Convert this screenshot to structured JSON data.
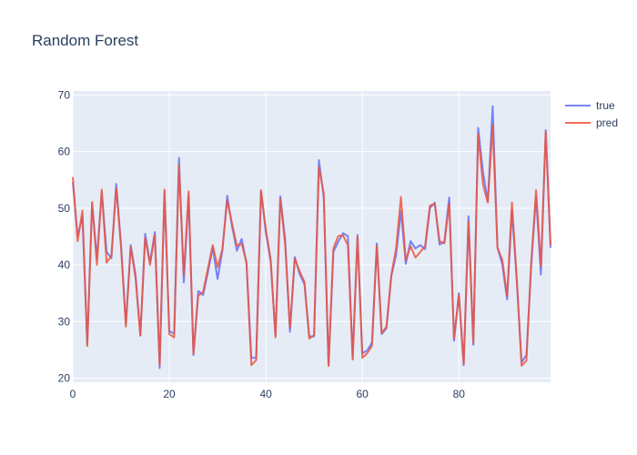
{
  "chart_data": {
    "type": "line",
    "title": "Random Forest",
    "xlabel": "",
    "ylabel": "",
    "xlim": [
      0,
      99
    ],
    "ylim": [
      19.3,
      70.7
    ],
    "x_ticks": [
      0,
      20,
      40,
      60,
      80
    ],
    "y_ticks": [
      20,
      30,
      40,
      50,
      60,
      70
    ],
    "grid": true,
    "legend_position": "top-right",
    "x": [
      0,
      1,
      2,
      3,
      4,
      5,
      6,
      7,
      8,
      9,
      10,
      11,
      12,
      13,
      14,
      15,
      16,
      17,
      18,
      19,
      20,
      21,
      22,
      23,
      24,
      25,
      26,
      27,
      28,
      29,
      30,
      31,
      32,
      33,
      34,
      35,
      36,
      37,
      38,
      39,
      40,
      41,
      42,
      43,
      44,
      45,
      46,
      47,
      48,
      49,
      50,
      51,
      52,
      53,
      54,
      55,
      56,
      57,
      58,
      59,
      60,
      61,
      62,
      63,
      64,
      65,
      66,
      67,
      68,
      69,
      70,
      71,
      72,
      73,
      74,
      75,
      76,
      77,
      78,
      79,
      80,
      81,
      82,
      83,
      84,
      85,
      86,
      87,
      88,
      89,
      90,
      91,
      92,
      93,
      94,
      95,
      96,
      97,
      98,
      99
    ],
    "series": [
      {
        "name": "true",
        "color": "#636efa",
        "values": [
          54.6,
          45.1,
          48.6,
          26.0,
          50.9,
          41.2,
          52.9,
          42.3,
          41.2,
          54.3,
          43.5,
          29.6,
          43.5,
          38.3,
          27.6,
          45.5,
          40.4,
          45.8,
          21.8,
          52.9,
          28.3,
          27.9,
          58.9,
          36.9,
          52.1,
          24.1,
          35.4,
          34.7,
          38.7,
          43.0,
          37.5,
          42.5,
          52.2,
          46.8,
          42.5,
          44.6,
          40.2,
          23.6,
          23.6,
          53.1,
          45.7,
          40.6,
          27.5,
          52.1,
          44.6,
          28.2,
          41.4,
          38.4,
          36.6,
          27.4,
          27.4,
          58.5,
          52.0,
          22.3,
          42.3,
          44.1,
          45.6,
          45.1,
          23.4,
          45.3,
          24.4,
          24.9,
          26.3,
          43.8,
          27.8,
          28.8,
          38.0,
          41.8,
          49.5,
          40.2,
          44.2,
          42.9,
          43.5,
          42.8,
          50.0,
          51.0,
          43.6,
          44.1,
          51.9,
          26.6,
          35.0,
          22.3,
          48.6,
          25.9,
          64.2,
          56.4,
          51.2,
          68.0,
          43.1,
          40.1,
          33.9,
          49.6,
          37.2,
          22.8,
          24.1,
          39.9,
          52.2,
          38.3,
          63.8,
          43.0
        ]
      },
      {
        "name": "pred",
        "color": "#ef553b",
        "values": [
          55.5,
          44.2,
          49.6,
          25.7,
          51.1,
          40.0,
          53.3,
          40.4,
          41.6,
          53.6,
          43.1,
          29.1,
          43.2,
          37.7,
          27.5,
          44.8,
          40.0,
          45.3,
          22.3,
          53.3,
          27.8,
          27.2,
          57.6,
          38.2,
          53.0,
          24.3,
          34.6,
          35.2,
          39.4,
          43.5,
          39.6,
          42.8,
          51.4,
          47.3,
          43.4,
          43.7,
          40.5,
          22.3,
          23.2,
          53.2,
          46.3,
          41.1,
          27.2,
          51.7,
          43.6,
          28.9,
          41.1,
          38.9,
          37.0,
          27.0,
          27.6,
          57.3,
          52.6,
          22.2,
          42.9,
          45.1,
          45.2,
          43.5,
          23.3,
          45.0,
          23.6,
          24.4,
          25.7,
          43.4,
          28.0,
          29.1,
          38.2,
          43.0,
          52.0,
          40.8,
          43.3,
          41.3,
          42.3,
          43.3,
          50.5,
          50.8,
          44.2,
          43.8,
          50.9,
          27.0,
          34.7,
          22.5,
          47.6,
          26.3,
          63.1,
          54.2,
          51.0,
          64.7,
          43.0,
          40.9,
          34.5,
          51.0,
          37.6,
          22.2,
          23.1,
          40.6,
          53.2,
          39.7,
          63.5,
          43.5
        ]
      }
    ]
  }
}
